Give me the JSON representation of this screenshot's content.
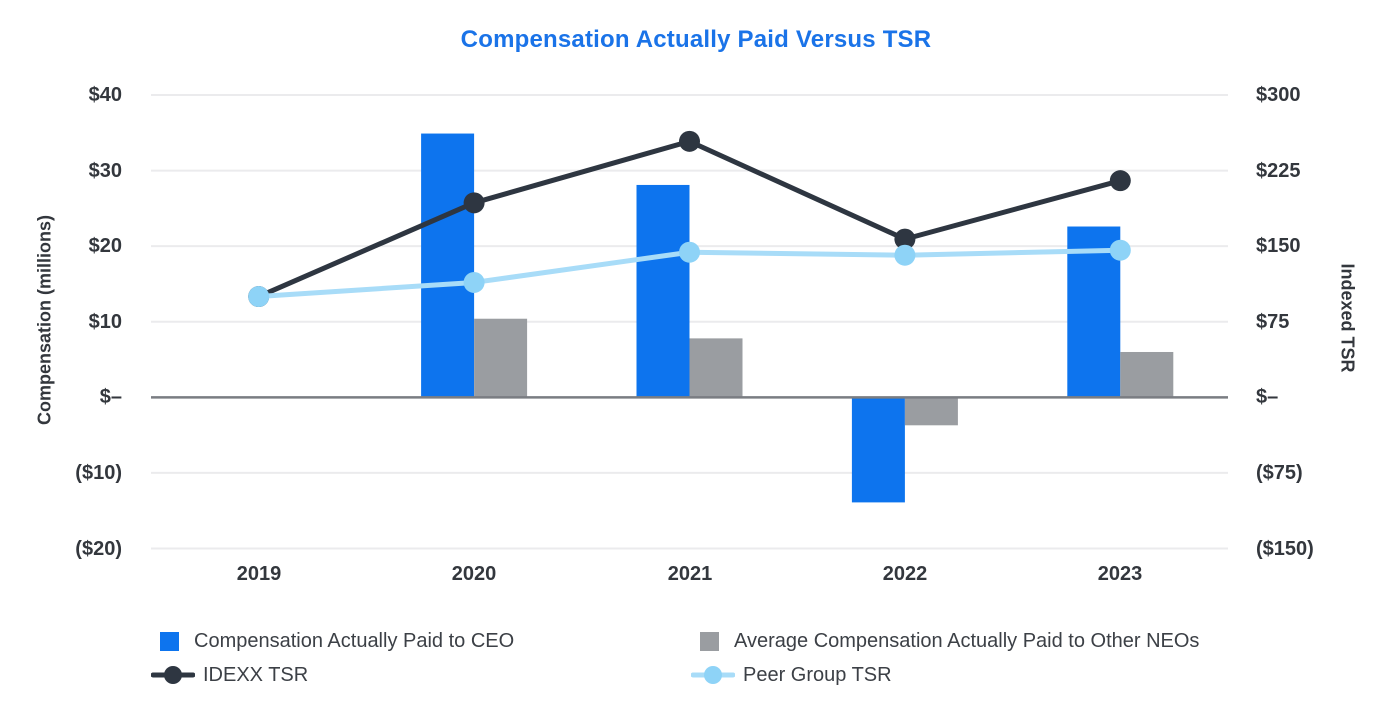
{
  "chart_data": {
    "type": "combo-bar-line",
    "title": "Compensation Actually Paid Versus TSR",
    "categories": [
      "2019",
      "2020",
      "2021",
      "2022",
      "2023"
    ],
    "series": [
      {
        "name": "Compensation Actually Paid to CEO",
        "type": "bar",
        "axis": "left",
        "color": "#0d74ee",
        "values": [
          null,
          34.9,
          28.1,
          -13.9,
          22.6
        ]
      },
      {
        "name": "Average Compensation Actually Paid to Other NEOs",
        "type": "bar",
        "axis": "left",
        "color": "#9a9da1",
        "values": [
          null,
          10.4,
          7.8,
          -3.7,
          6.0
        ]
      },
      {
        "name": "IDEXX TSR",
        "type": "line",
        "axis": "right",
        "color": "#2e3641",
        "values": [
          100,
          193,
          254,
          157,
          215
        ]
      },
      {
        "name": "Peer Group TSR",
        "type": "line",
        "axis": "right",
        "color": "#8ed3f7",
        "line_color": "#a8dcf8",
        "values": [
          100,
          114,
          144,
          141,
          146
        ]
      }
    ],
    "left_axis": {
      "label": "Compensation (millions)",
      "min": -20,
      "max": 40,
      "tick_step": 10,
      "tick_values": [
        40,
        30,
        20,
        10,
        0,
        -10,
        -20
      ],
      "tick_labels": [
        "$40",
        "$30",
        "$20",
        "$10",
        "$–",
        "($10)",
        "($20)"
      ]
    },
    "right_axis": {
      "label": "Indexed TSR",
      "min": -150,
      "max": 300,
      "tick_step": 75,
      "tick_values": [
        300,
        225,
        150,
        75,
        0,
        -75,
        -150
      ],
      "tick_labels": [
        "$300",
        "$225",
        "$150",
        "$75",
        "$–",
        "($75)",
        "($150)"
      ]
    },
    "grid": true,
    "legend_position": "bottom",
    "colors": {
      "title": "#1a73e8",
      "gridline": "#ebebed",
      "zero_line": "#7a7d82",
      "axis_text": "#33373d"
    }
  }
}
